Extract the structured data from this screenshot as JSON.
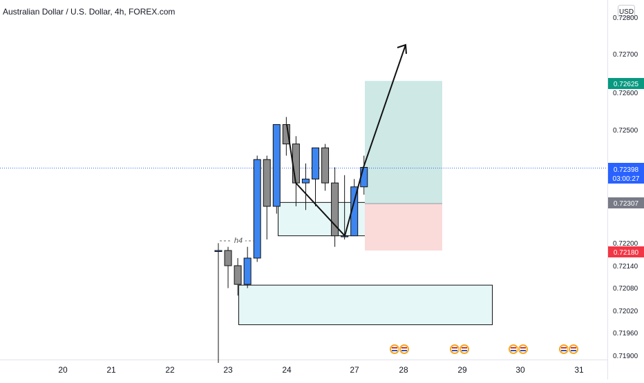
{
  "header": {
    "title": "Australian Dollar / U.S. Dollar, 4h, FOREX.com",
    "currency": "USD"
  },
  "colors": {
    "bull": "#3d85f0",
    "bear": "#8c8c8c",
    "wick": "#111111",
    "target_zone": "#cde8e5",
    "stop_zone": "#fbdada",
    "demand_zone": "#e6f7f7",
    "current_price_line": "#2962ff",
    "tag_current": "#2962ff",
    "tag_target": "#089981",
    "tag_entry": "#787b86",
    "tag_stop": "#f23645"
  },
  "chart_data": {
    "type": "candlestick",
    "title": "Australian Dollar / U.S. Dollar, 4h, FOREX.com",
    "x_tick_labels": [
      "20",
      "21",
      "22",
      "23",
      "24",
      "27",
      "28",
      "29",
      "30",
      "31"
    ],
    "y_tick_labels": [
      "0.72800",
      "0.72700",
      "0.72600",
      "0.72500",
      "0.72200",
      "0.72140",
      "0.72080",
      "0.72020",
      "0.71960",
      "0.71900"
    ],
    "timeframe_marker": "h4",
    "candles": [
      {
        "o": 0.7218,
        "h": 0.722,
        "l": 0.7188,
        "c": 0.7218
      },
      {
        "o": 0.7218,
        "h": 0.7219,
        "l": 0.7208,
        "c": 0.7214
      },
      {
        "o": 0.7214,
        "h": 0.7216,
        "l": 0.7206,
        "c": 0.7209
      },
      {
        "o": 0.7209,
        "h": 0.7219,
        "l": 0.7208,
        "c": 0.7216
      },
      {
        "o": 0.7216,
        "h": 0.7243,
        "l": 0.7215,
        "c": 0.7242
      },
      {
        "o": 0.7242,
        "h": 0.7243,
        "l": 0.7221,
        "c": 0.723
      },
      {
        "o": 0.723,
        "h": 0.7251,
        "l": 0.7228,
        "c": 0.7251
      },
      {
        "o": 0.7251,
        "h": 0.7253,
        "l": 0.7243,
        "c": 0.7246
      },
      {
        "o": 0.7246,
        "h": 0.7248,
        "l": 0.723,
        "c": 0.7236
      },
      {
        "o": 0.7236,
        "h": 0.7241,
        "l": 0.7229,
        "c": 0.7237
      },
      {
        "o": 0.7237,
        "h": 0.7245,
        "l": 0.723,
        "c": 0.7245
      },
      {
        "o": 0.7245,
        "h": 0.7246,
        "l": 0.7234,
        "c": 0.7236
      },
      {
        "o": 0.7236,
        "h": 0.724,
        "l": 0.7219,
        "c": 0.7222
      },
      {
        "o": 0.7222,
        "h": 0.7238,
        "l": 0.7221,
        "c": 0.7222
      },
      {
        "o": 0.7222,
        "h": 0.7237,
        "l": 0.7222,
        "c": 0.7235
      },
      {
        "o": 0.7235,
        "h": 0.7243,
        "l": 0.7233,
        "c": 0.724
      }
    ],
    "price_levels": {
      "current": 0.72398,
      "target": 0.72625,
      "entry": 0.72307,
      "stop": 0.7218
    },
    "tags": {
      "current_price": "0.72398",
      "countdown": "03:00:27",
      "target": "0.72625",
      "entry": "0.72307",
      "stop": "0.72180"
    },
    "position": {
      "type": "long",
      "entry": 0.72307,
      "target": 0.72625,
      "stop": 0.7218
    },
    "zones": [
      {
        "name": "upper-demand-zone",
        "top": 0.7231,
        "bottom": 0.7222
      },
      {
        "name": "lower-demand-zone",
        "top": 0.72088,
        "bottom": 0.71982
      }
    ],
    "arrow_path_prices": [
      0.7251,
      0.7236,
      0.7222,
      0.724,
      0.7272
    ],
    "event_markers": 4,
    "grid": false
  }
}
